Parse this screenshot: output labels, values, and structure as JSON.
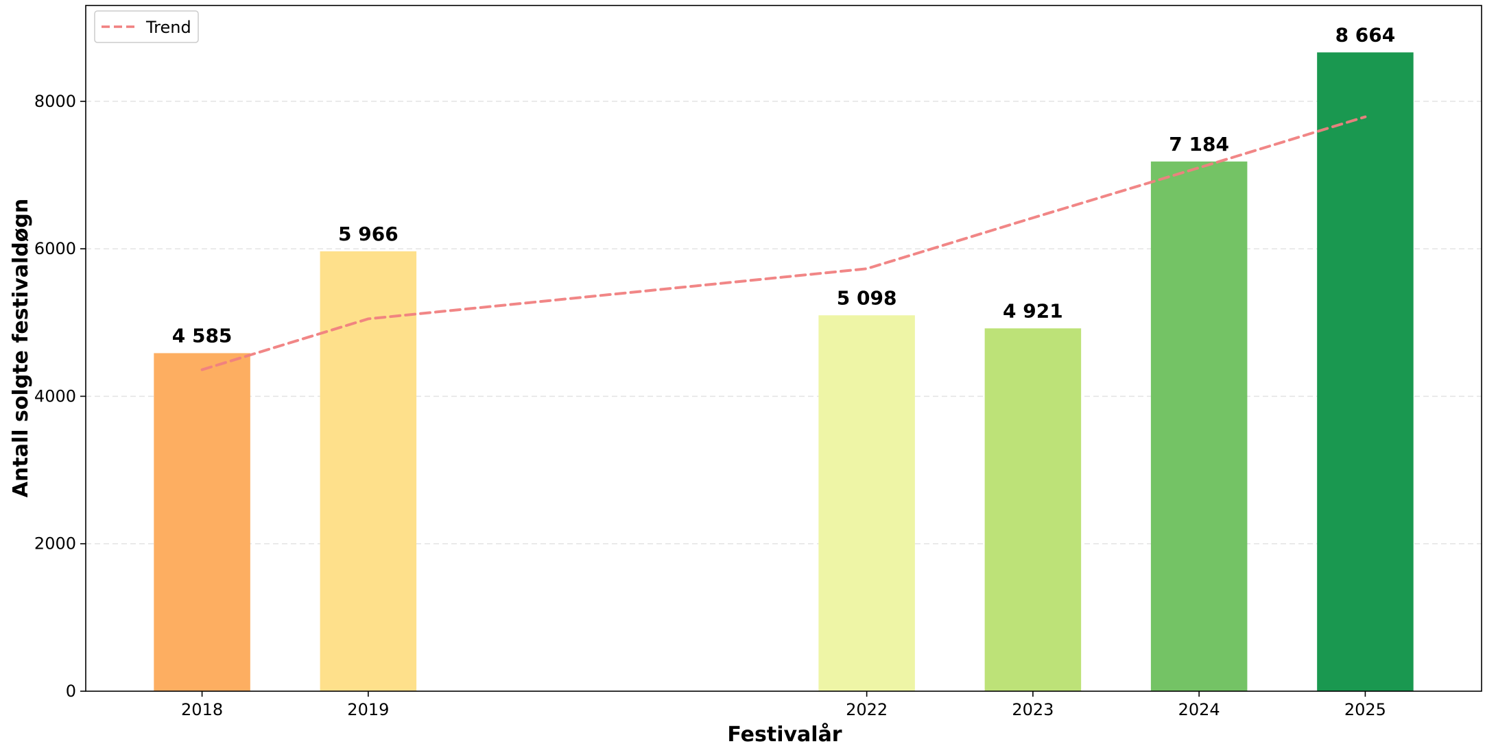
{
  "chart_data": {
    "type": "bar",
    "xlabel": "Festivalår",
    "ylabel": "Antall solgte festivaldøgn",
    "x": [
      2018,
      2019,
      2022,
      2023,
      2024,
      2025
    ],
    "categories": [
      "2018",
      "2019",
      "2022",
      "2023",
      "2024",
      "2025"
    ],
    "values": [
      4585,
      5966,
      5098,
      4921,
      7184,
      8664
    ],
    "data_labels": [
      "4 585",
      "5 966",
      "5 098",
      "4 921",
      "7 184",
      "8 664"
    ],
    "bar_colors": [
      "#fdae61",
      "#fee08b",
      "#eef5a6",
      "#bde278",
      "#74c365",
      "#1a9850"
    ],
    "ylim": [
      0,
      9300
    ],
    "yticks": [
      0,
      2000,
      4000,
      6000,
      8000
    ],
    "xlim": [
      2017.3,
      2025.7
    ],
    "grid": "horizontal-dashed",
    "trend": {
      "name": "Trend",
      "x": [
        2018,
        2019,
        2022,
        2023,
        2024,
        2025
      ],
      "values": [
        4360,
        5050,
        5730,
        6420,
        7100,
        7790
      ],
      "color": "#f08080",
      "style": "dashed"
    },
    "legend": {
      "placement": "top-left",
      "entries": [
        "Trend"
      ]
    }
  }
}
